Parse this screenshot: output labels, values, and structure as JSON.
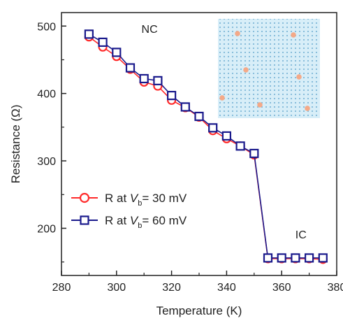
{
  "chart_data": {
    "type": "line",
    "xlabel": "Temperature (K)",
    "ylabel": "Resistance (Ω)",
    "xlim": [
      280,
      380
    ],
    "ylim": [
      130,
      520
    ],
    "xticks": [
      280,
      300,
      320,
      340,
      360,
      380
    ],
    "yticks": [
      200,
      300,
      400,
      500
    ],
    "x": [
      290,
      295,
      300,
      305,
      310,
      315,
      320,
      325,
      330,
      335,
      340,
      345,
      350,
      355,
      360,
      365,
      370,
      375
    ],
    "series": [
      {
        "name_prefix": "R at ",
        "name_var": "V",
        "name_sub": "b",
        "name_suffix": "= 30 mV",
        "color": "#ff2a2a",
        "marker": "circle",
        "values": [
          484,
          469,
          455,
          436,
          417,
          411,
          390,
          379,
          365,
          345,
          333,
          322,
          309,
          155,
          155,
          155,
          155,
          154
        ]
      },
      {
        "name_prefix": "R at ",
        "name_var": "V",
        "name_sub": "b",
        "name_suffix": "= 60 mV",
        "color": "#1a1a8c",
        "marker": "square",
        "values": [
          488,
          476,
          461,
          438,
          422,
          419,
          397,
          380,
          366,
          349,
          337,
          322,
          311,
          156,
          156,
          156,
          156,
          156
        ]
      }
    ],
    "annotations": [
      {
        "text": "NC",
        "x": 312,
        "y": 490
      },
      {
        "text": "IC",
        "x": 367,
        "y": 185
      }
    ],
    "legend_position": "lower-left",
    "grid": false,
    "inset": {
      "background": "#d8eef8",
      "dot_color": "#f4a988",
      "lattice_color": "#7fb8d8"
    }
  }
}
